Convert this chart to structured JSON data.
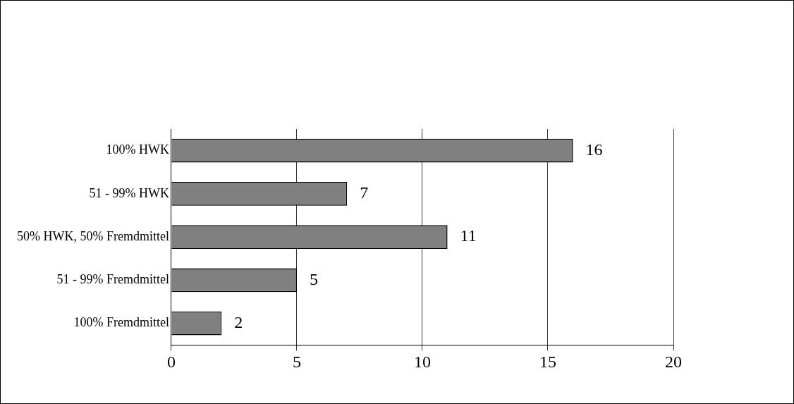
{
  "chart_data": {
    "type": "bar",
    "orientation": "horizontal",
    "categories": [
      "100% HWK",
      "51 - 99% HWK",
      "50% HWK, 50% Fremdmittel",
      "51 - 99% Fremdmittel",
      "100% Fremdmittel"
    ],
    "values": [
      16,
      7,
      11,
      5,
      2
    ],
    "color": "#808080",
    "xlim": [
      0,
      20
    ],
    "xticks": [
      0,
      5,
      10,
      15,
      20
    ],
    "grid": "x",
    "data_labels": true,
    "legend": false
  }
}
